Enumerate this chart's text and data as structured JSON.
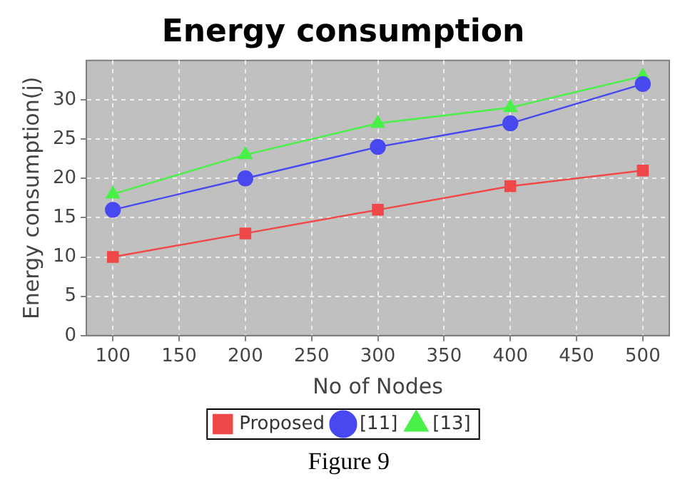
{
  "chart_data": {
    "type": "line",
    "title": "Energy consumption",
    "xlabel": "No of Nodes",
    "ylabel": "Energy consumption(j)",
    "x": [
      100,
      200,
      300,
      400,
      500
    ],
    "series": [
      {
        "name": "Proposed",
        "color": "#f04848",
        "marker": "square",
        "values": [
          10,
          13,
          16,
          19,
          21
        ]
      },
      {
        "name": "[11]",
        "color": "#4848f0",
        "marker": "circle",
        "values": [
          16,
          20,
          24,
          27,
          32
        ]
      },
      {
        "name": "[13]",
        "color": "#48f048",
        "marker": "triangle",
        "values": [
          18,
          23,
          27,
          29,
          33
        ]
      }
    ],
    "xlim": [
      80,
      520
    ],
    "xticks": [
      100,
      150,
      200,
      250,
      300,
      350,
      400,
      450,
      500
    ],
    "ylim": [
      0,
      35
    ],
    "yticks": [
      0,
      5,
      10,
      15,
      20,
      25,
      30
    ],
    "grid": true,
    "legend": "bottom",
    "line_style": "solid",
    "annotations": [
      "Figure 9"
    ]
  }
}
